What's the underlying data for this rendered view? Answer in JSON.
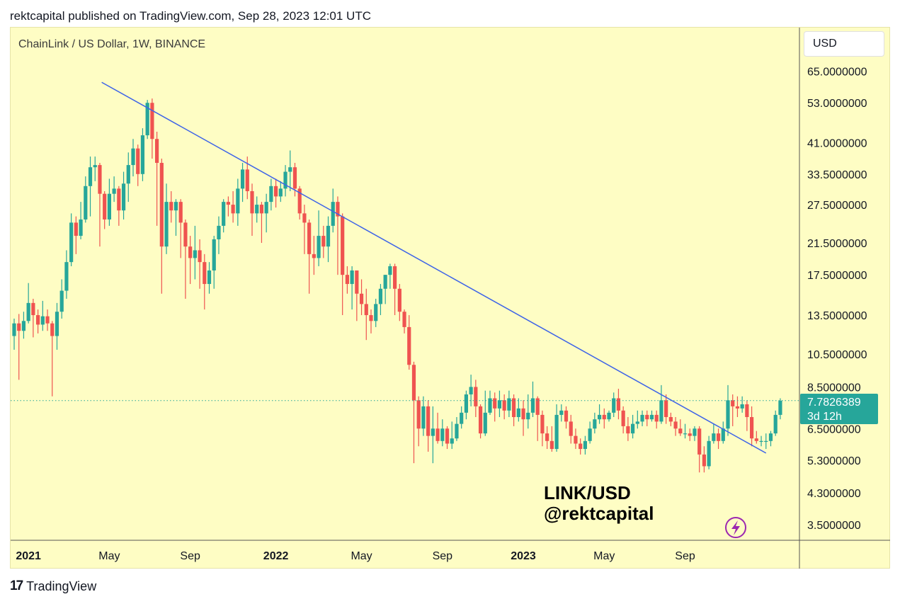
{
  "header": {
    "publish_text": "rektcapital published on TradingView.com, Sep 28, 2023 12:01 UTC"
  },
  "chart_title": "ChainLink / US Dollar, 1W, BINANCE",
  "currency_label": "USD",
  "watermark": {
    "line1": "LINK/USD",
    "line2": "@rektcapital"
  },
  "footer": {
    "brand": "TradingView",
    "logo": "17"
  },
  "colors": {
    "background": "#fefdc4",
    "up": "#26a69a",
    "down": "#ef5350",
    "trendline": "#3d63e8",
    "current_price": "#26a69a",
    "flash_icon": "#9c27b0"
  },
  "chart_data": {
    "type": "candlestick",
    "scale": "log",
    "ylim": [
      3.3,
      78
    ],
    "price_ticks": [
      "65.0000000",
      "53.0000000",
      "41.0000000",
      "33.5000000",
      "27.5000000",
      "21.5000000",
      "17.5000000",
      "13.5000000",
      "10.5000000",
      "8.5000000",
      "6.5000000",
      "5.3000000",
      "4.3000000",
      "3.5000000"
    ],
    "time_ticks": [
      {
        "label": "2021",
        "bold": true,
        "week": 3
      },
      {
        "label": "May",
        "bold": false,
        "week": 20
      },
      {
        "label": "Sep",
        "bold": false,
        "week": 37
      },
      {
        "label": "2022",
        "bold": true,
        "week": 55
      },
      {
        "label": "May",
        "bold": false,
        "week": 73
      },
      {
        "label": "Sep",
        "bold": false,
        "week": 90
      },
      {
        "label": "2023",
        "bold": true,
        "week": 107
      },
      {
        "label": "May",
        "bold": false,
        "week": 124
      },
      {
        "label": "Sep",
        "bold": false,
        "week": 141
      }
    ],
    "current_price": {
      "value": "7.7826389",
      "countdown": "3d 12h",
      "level": 7.7826389
    },
    "trendline": {
      "start": {
        "week": 18.4,
        "price": 60.5
      },
      "end": {
        "week": 158,
        "price": 5.55
      }
    },
    "candles": [
      [
        11.8,
        12.8,
        10.8,
        13.2
      ],
      [
        12.8,
        12.2,
        8.9,
        13.6
      ],
      [
        12.2,
        13.0,
        11.6,
        13.8
      ],
      [
        13.0,
        14.6,
        12.8,
        16.6
      ],
      [
        14.6,
        13.5,
        11.7,
        15.0
      ],
      [
        13.5,
        12.7,
        12.0,
        14.0
      ],
      [
        12.7,
        13.4,
        12.2,
        14.8
      ],
      [
        13.4,
        12.8,
        12.2,
        14.0
      ],
      [
        12.8,
        11.8,
        8.0,
        13.0
      ],
      [
        11.8,
        13.8,
        10.8,
        14.6
      ],
      [
        13.8,
        15.8,
        13.2,
        17.0
      ],
      [
        15.8,
        19.0,
        15.0,
        20.5
      ],
      [
        19.0,
        24.5,
        18.5,
        26.0
      ],
      [
        24.5,
        22.5,
        20.0,
        25.5
      ],
      [
        22.5,
        25.0,
        22.0,
        28.0
      ],
      [
        25.0,
        31.0,
        24.5,
        33.0
      ],
      [
        31.0,
        35.0,
        25.5,
        37.5
      ],
      [
        35.0,
        35.5,
        32.0,
        37.5
      ],
      [
        35.5,
        29.5,
        21.0,
        36.0
      ],
      [
        29.5,
        25.0,
        23.5,
        30.0
      ],
      [
        25.0,
        29.5,
        24.0,
        32.5
      ],
      [
        29.5,
        30.5,
        28.0,
        33.0
      ],
      [
        30.5,
        26.5,
        24.0,
        31.0
      ],
      [
        26.5,
        31.5,
        25.0,
        34.0
      ],
      [
        31.5,
        35.5,
        28.0,
        38.5
      ],
      [
        35.5,
        39.5,
        33.0,
        42.0
      ],
      [
        39.5,
        33.5,
        31.0,
        40.5
      ],
      [
        33.5,
        43.0,
        32.0,
        45.0
      ],
      [
        43.0,
        53.0,
        42.0,
        54.0
      ],
      [
        53.0,
        42.0,
        37.0,
        54.5
      ],
      [
        42.0,
        36.0,
        24.0,
        44.0
      ],
      [
        36.0,
        21.0,
        15.5,
        37.0
      ],
      [
        21.0,
        28.0,
        20.0,
        31.5
      ],
      [
        28.0,
        26.5,
        24.5,
        30.0
      ],
      [
        26.5,
        28.0,
        22.5,
        28.5
      ],
      [
        28.0,
        24.5,
        19.5,
        28.5
      ],
      [
        24.5,
        21.0,
        15.0,
        25.0
      ],
      [
        21.0,
        19.5,
        16.5,
        22.5
      ],
      [
        19.5,
        20.5,
        17.0,
        24.0
      ],
      [
        20.5,
        19.0,
        16.0,
        22.0
      ],
      [
        19.0,
        16.5,
        14.0,
        20.0
      ],
      [
        16.5,
        18.0,
        15.5,
        19.0
      ],
      [
        18.0,
        22.0,
        16.0,
        22.5
      ],
      [
        22.0,
        24.0,
        20.0,
        25.5
      ],
      [
        24.0,
        28.0,
        23.0,
        28.5
      ],
      [
        28.0,
        27.5,
        25.5,
        29.0
      ],
      [
        27.5,
        26.0,
        24.5,
        30.0
      ],
      [
        26.0,
        30.5,
        24.0,
        32.5
      ],
      [
        30.5,
        34.5,
        28.0,
        36.0
      ],
      [
        34.5,
        30.0,
        28.5,
        37.5
      ],
      [
        30.0,
        26.0,
        22.5,
        31.5
      ],
      [
        26.0,
        27.5,
        24.5,
        29.0
      ],
      [
        27.5,
        26.0,
        21.5,
        28.0
      ],
      [
        26.0,
        28.0,
        23.0,
        29.5
      ],
      [
        28.0,
        31.0,
        26.5,
        32.5
      ],
      [
        31.0,
        29.0,
        27.0,
        32.5
      ],
      [
        29.0,
        30.5,
        28.0,
        32.0
      ],
      [
        30.5,
        34.0,
        29.0,
        35.5
      ],
      [
        34.0,
        35.0,
        30.0,
        39.0
      ],
      [
        35.0,
        30.5,
        29.0,
        36.0
      ],
      [
        30.5,
        26.0,
        25.0,
        31.0
      ],
      [
        26.0,
        24.5,
        20.0,
        27.5
      ],
      [
        24.5,
        20.0,
        15.5,
        25.0
      ],
      [
        20.0,
        19.5,
        17.5,
        22.5
      ],
      [
        19.5,
        22.5,
        18.5,
        26.5
      ],
      [
        22.5,
        21.0,
        19.5,
        24.0
      ],
      [
        21.0,
        24.0,
        19.0,
        25.5
      ],
      [
        24.0,
        28.0,
        23.0,
        30.5
      ],
      [
        28.0,
        25.5,
        17.5,
        29.0
      ],
      [
        25.5,
        17.5,
        13.5,
        26.0
      ],
      [
        17.5,
        16.5,
        15.5,
        18.5
      ],
      [
        16.5,
        18.0,
        14.0,
        18.5
      ],
      [
        18.0,
        15.5,
        13.0,
        18.0
      ],
      [
        15.5,
        14.5,
        13.5,
        17.0
      ],
      [
        14.5,
        13.5,
        11.5,
        16.0
      ],
      [
        13.5,
        13.0,
        12.0,
        14.0
      ],
      [
        13.0,
        14.5,
        12.5,
        15.0
      ],
      [
        14.5,
        16.0,
        13.5,
        16.5
      ],
      [
        16.0,
        17.5,
        14.5,
        17.5
      ],
      [
        17.5,
        18.5,
        16.0,
        18.8
      ],
      [
        18.5,
        16.0,
        13.5,
        18.8
      ],
      [
        16.0,
        13.8,
        13.0,
        16.5
      ],
      [
        13.8,
        12.5,
        12.0,
        14.0
      ],
      [
        12.5,
        9.8,
        9.5,
        13.5
      ],
      [
        9.8,
        7.8,
        5.2,
        10.0
      ],
      [
        7.8,
        6.5,
        5.8,
        8.0
      ],
      [
        6.5,
        7.5,
        6.2,
        8.0
      ],
      [
        7.5,
        6.2,
        5.6,
        7.8
      ],
      [
        6.2,
        6.5,
        5.2,
        7.5
      ],
      [
        6.5,
        6.0,
        5.9,
        7.2
      ],
      [
        6.0,
        6.5,
        5.8,
        6.9
      ],
      [
        6.5,
        5.9,
        5.7,
        6.6
      ],
      [
        5.9,
        6.1,
        5.7,
        6.8
      ],
      [
        6.1,
        6.7,
        6.0,
        7.0
      ],
      [
        6.7,
        7.2,
        6.5,
        7.5
      ],
      [
        7.2,
        8.1,
        6.9,
        8.3
      ],
      [
        8.1,
        8.5,
        7.5,
        9.2
      ],
      [
        8.5,
        7.5,
        7.0,
        8.9
      ],
      [
        7.5,
        6.3,
        6.1,
        7.6
      ],
      [
        6.3,
        7.2,
        6.2,
        8.3
      ],
      [
        7.2,
        7.9,
        7.1,
        8.3
      ],
      [
        7.9,
        7.4,
        6.8,
        8.2
      ],
      [
        7.4,
        7.8,
        7.0,
        8.3
      ],
      [
        7.8,
        7.3,
        6.9,
        8.1
      ],
      [
        7.3,
        7.9,
        7.0,
        8.3
      ],
      [
        7.9,
        7.0,
        6.6,
        8.1
      ],
      [
        7.0,
        7.4,
        6.8,
        7.9
      ],
      [
        7.4,
        6.9,
        6.2,
        7.8
      ],
      [
        6.9,
        7.2,
        6.5,
        8.1
      ],
      [
        7.2,
        7.9,
        7.0,
        8.8
      ],
      [
        7.9,
        7.1,
        6.0,
        8.0
      ],
      [
        7.1,
        6.3,
        5.8,
        7.3
      ],
      [
        6.3,
        6.0,
        5.7,
        6.6
      ],
      [
        6.0,
        5.7,
        5.6,
        6.6
      ],
      [
        5.7,
        7.1,
        5.6,
        7.6
      ],
      [
        7.1,
        7.3,
        6.8,
        7.6
      ],
      [
        7.3,
        6.8,
        6.5,
        7.5
      ],
      [
        6.8,
        6.2,
        5.9,
        7.1
      ],
      [
        6.2,
        5.9,
        5.7,
        6.5
      ],
      [
        5.9,
        5.7,
        5.5,
        6.1
      ],
      [
        5.7,
        6.0,
        5.5,
        6.2
      ],
      [
        6.0,
        6.5,
        5.9,
        6.8
      ],
      [
        6.5,
        6.9,
        6.3,
        7.2
      ],
      [
        6.9,
        7.1,
        6.7,
        7.6
      ],
      [
        7.1,
        6.9,
        6.5,
        7.4
      ],
      [
        6.9,
        7.2,
        6.8,
        7.3
      ],
      [
        7.2,
        7.9,
        7.0,
        8.2
      ],
      [
        7.9,
        7.3,
        6.9,
        8.4
      ],
      [
        7.3,
        6.6,
        6.3,
        7.5
      ],
      [
        6.6,
        6.3,
        6.0,
        7.0
      ],
      [
        6.3,
        6.7,
        6.1,
        7.1
      ],
      [
        6.7,
        6.8,
        6.5,
        7.3
      ],
      [
        6.8,
        7.1,
        6.6,
        7.3
      ],
      [
        7.1,
        6.9,
        6.6,
        7.3
      ],
      [
        6.9,
        7.1,
        6.8,
        7.3
      ],
      [
        7.1,
        6.8,
        6.5,
        7.3
      ],
      [
        6.8,
        7.8,
        6.7,
        8.6
      ],
      [
        7.8,
        7.0,
        6.7,
        8.1
      ],
      [
        7.0,
        6.8,
        6.6,
        7.2
      ],
      [
        6.8,
        6.5,
        6.2,
        7.0
      ],
      [
        6.5,
        6.3,
        6.2,
        6.9
      ],
      [
        6.3,
        6.3,
        6.1,
        6.7
      ],
      [
        6.3,
        6.2,
        6.0,
        6.5
      ],
      [
        6.2,
        6.5,
        6.0,
        6.6
      ],
      [
        6.5,
        5.5,
        4.9,
        6.6
      ],
      [
        5.5,
        5.1,
        4.9,
        5.8
      ],
      [
        5.1,
        6.0,
        5.0,
        6.2
      ],
      [
        6.0,
        6.3,
        5.9,
        6.7
      ],
      [
        6.3,
        6.0,
        5.7,
        6.5
      ],
      [
        6.0,
        6.5,
        5.9,
        6.8
      ],
      [
        6.5,
        7.8,
        6.2,
        8.6
      ],
      [
        7.8,
        7.5,
        6.6,
        8.1
      ],
      [
        7.5,
        7.4,
        7.0,
        8.0
      ],
      [
        7.4,
        7.6,
        7.2,
        8.0
      ],
      [
        7.6,
        7.0,
        6.4,
        7.8
      ],
      [
        7.0,
        6.1,
        5.8,
        7.5
      ],
      [
        6.1,
        6.0,
        5.9,
        6.4
      ],
      [
        6.0,
        6.0,
        5.8,
        6.2
      ],
      [
        6.0,
        6.0,
        5.7,
        6.3
      ],
      [
        6.0,
        6.3,
        5.8,
        6.4
      ],
      [
        6.3,
        7.1,
        6.2,
        7.3
      ],
      [
        7.1,
        7.78,
        6.9,
        7.9
      ]
    ]
  }
}
